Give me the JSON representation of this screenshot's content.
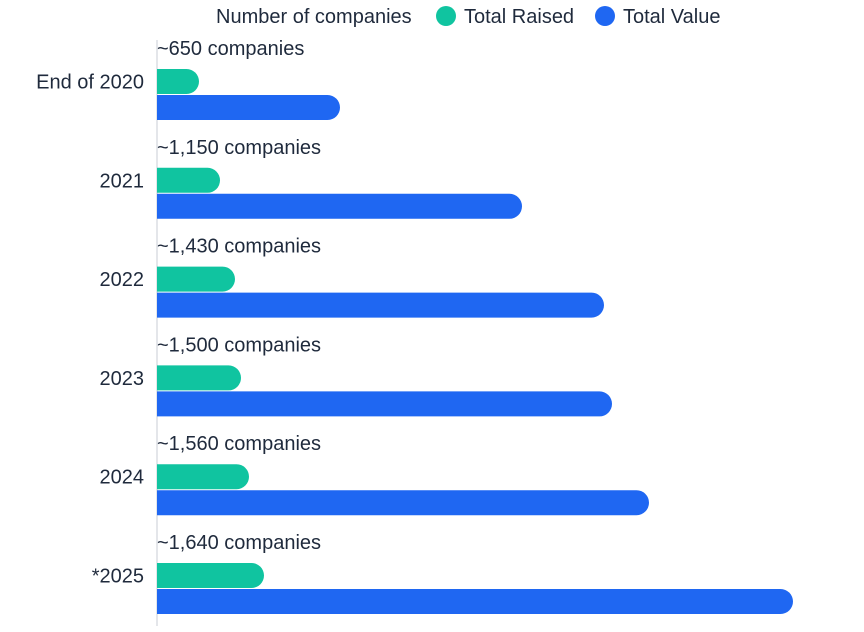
{
  "legend": {
    "title": "Number of companies",
    "items": [
      {
        "label": "Total Raised",
        "color": "#10c4a0"
      },
      {
        "label": "Total Value",
        "color": "#1f67f2"
      }
    ]
  },
  "chart_data": {
    "type": "bar",
    "orientation": "horizontal",
    "categories": [
      "End of 2020",
      "2021",
      "2022",
      "2023",
      "2024",
      "*2025"
    ],
    "annotations": [
      "~650 companies",
      "~1,150 companies",
      "~1,430 companies",
      "~1,500 companies",
      "~1,560 companies",
      "~1,640 companies"
    ],
    "series": [
      {
        "name": "Total Raised",
        "color": "#10c4a0",
        "values": [
          42,
          63,
          78,
          84,
          92,
          107
        ]
      },
      {
        "name": "Total Value",
        "color": "#1f67f2",
        "values": [
          183,
          365,
          447,
          455,
          492,
          636
        ]
      }
    ],
    "xlim": [
      0,
      640
    ],
    "grid": false,
    "legend_position": "top"
  }
}
